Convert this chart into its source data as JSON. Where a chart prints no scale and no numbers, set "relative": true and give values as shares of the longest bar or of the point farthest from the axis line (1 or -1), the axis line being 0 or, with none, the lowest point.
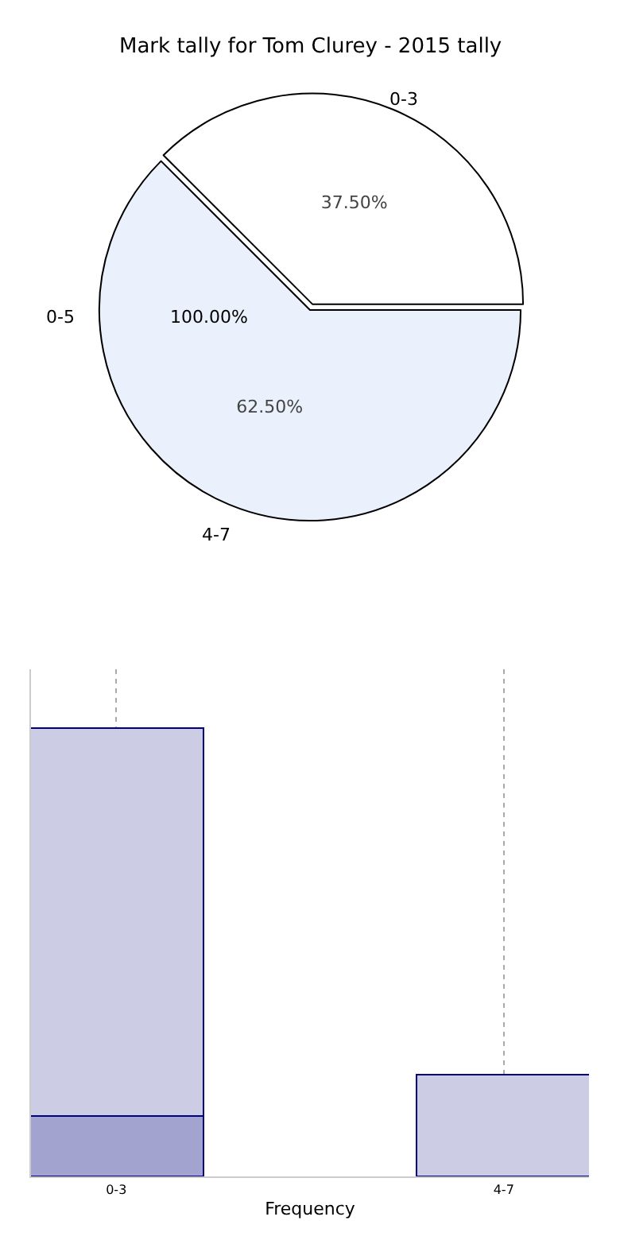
{
  "chart_data": [
    {
      "type": "pie",
      "title": "Mark tally for Tom Clurey - 2015 tally",
      "categories": [
        "0-3",
        "4-7"
      ],
      "values": [
        37.5,
        62.5
      ],
      "colors": [
        "#ffffff",
        "#eaf0fc"
      ],
      "value_labels": [
        "37.50%",
        "62.50%"
      ],
      "annotations": [
        "0-5",
        "100.00%"
      ]
    },
    {
      "type": "bar",
      "relative": true,
      "stacked": true,
      "categories": [
        "0-3",
        "4-7"
      ],
      "xlabel": "Frequency",
      "grid": "x",
      "series": [
        {
          "color": "#a3a3cf",
          "values": [
            0.135,
            null
          ]
        },
        {
          "color": "#cccce4",
          "values": [
            0.865,
            0.228
          ]
        }
      ]
    }
  ]
}
